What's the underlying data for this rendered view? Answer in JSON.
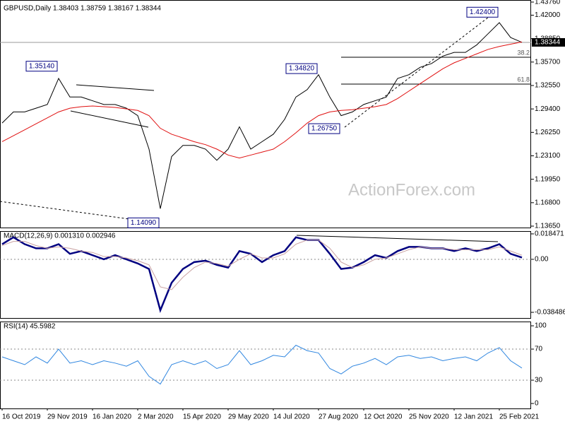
{
  "chart_data": [
    {
      "type": "line",
      "title": "GBPUSD,Daily  1.38403 1.38759 1.38167 1.38344",
      "watermark": "ActionForex.com",
      "series": [
        {
          "name": "GBPUSD",
          "color": "#000000",
          "values": [
            1.275,
            1.29,
            1.29,
            1.295,
            1.3,
            1.335,
            1.31,
            1.31,
            1.305,
            1.3,
            1.3,
            1.295,
            1.285,
            1.24,
            1.16,
            1.23,
            1.245,
            1.245,
            1.24,
            1.225,
            1.24,
            1.27,
            1.24,
            1.25,
            1.26,
            1.28,
            1.31,
            1.32,
            1.34,
            1.31,
            1.285,
            1.29,
            1.3,
            1.305,
            1.31,
            1.335,
            1.34,
            1.35,
            1.355,
            1.365,
            1.37,
            1.37,
            1.38,
            1.395,
            1.41,
            1.39,
            1.38344
          ]
        },
        {
          "name": "MA",
          "color": "#e01010",
          "values": [
            1.25,
            1.258,
            1.266,
            1.274,
            1.282,
            1.29,
            1.295,
            1.297,
            1.298,
            1.297,
            1.296,
            1.294,
            1.292,
            1.285,
            1.268,
            1.26,
            1.255,
            1.25,
            1.246,
            1.24,
            1.232,
            1.228,
            1.232,
            1.236,
            1.24,
            1.25,
            1.262,
            1.275,
            1.285,
            1.29,
            1.292,
            1.293,
            1.295,
            1.297,
            1.3,
            1.308,
            1.318,
            1.328,
            1.338,
            1.348,
            1.356,
            1.362,
            1.368,
            1.374,
            1.378,
            1.381,
            1.384
          ]
        }
      ],
      "ylim": [
        1.1346,
        1.4404
      ],
      "yticks": [
        {
          "value": 1.4376,
          "label": "1.43760"
        },
        {
          "value": 1.42,
          "label": "1.42000"
        },
        {
          "value": 1.3885,
          "label": "1.38850"
        },
        {
          "value": 1.357,
          "label": "1.35700"
        },
        {
          "value": 1.3255,
          "label": "1.32550"
        },
        {
          "value": 1.294,
          "label": "1.29400"
        },
        {
          "value": 1.2625,
          "label": "1.26250"
        },
        {
          "value": 1.231,
          "label": "1.23100"
        },
        {
          "value": 1.1995,
          "label": "1.19950"
        },
        {
          "value": 1.168,
          "label": "1.16800"
        },
        {
          "value": 1.1365,
          "label": "1.13650"
        }
      ],
      "last_price": {
        "value": 1.38344,
        "label": "1.38344"
      },
      "annotations": [
        {
          "index": 5,
          "value": 1.3514,
          "label": "1.35140"
        },
        {
          "index": 14,
          "value": 1.1409,
          "label": "1.14090"
        },
        {
          "index": 28,
          "value": 1.3482,
          "label": "1.34820"
        },
        {
          "index": 30,
          "value": 1.2675,
          "label": "1.26750"
        },
        {
          "index": 44,
          "value": 1.424,
          "label": "1.42400"
        }
      ],
      "fib_levels": [
        {
          "text": "38.2",
          "price": 1.3635,
          "start_index": 30
        },
        {
          "text": "61.8",
          "price": 1.3274,
          "start_index": 30
        }
      ]
    },
    {
      "type": "line",
      "title": "MACD(12,26,9) 0.001310 0.002946",
      "series": [
        {
          "name": "MACD",
          "color": "#000080",
          "width": 2.5,
          "values": [
            0.011,
            0.016,
            0.011,
            0.008,
            0.008,
            0.011,
            0.004,
            0.006,
            0.003,
            0.0,
            0.003,
            0.0,
            -0.003,
            -0.007,
            -0.037,
            -0.017,
            -0.007,
            -0.002,
            -0.001,
            -0.004,
            -0.006,
            0.006,
            0.004,
            -0.002,
            0.003,
            0.006,
            0.016,
            0.014,
            0.014,
            0.004,
            -0.007,
            -0.006,
            -0.002,
            0.003,
            0.001,
            0.006,
            0.009,
            0.009,
            0.008,
            0.008,
            0.006,
            0.008,
            0.006,
            0.008,
            0.011,
            0.004,
            0.00131
          ]
        },
        {
          "name": "Signal",
          "color": "#c8a0a0",
          "width": 1,
          "values": [
            0.01,
            0.013,
            0.013,
            0.01,
            0.008,
            0.009,
            0.008,
            0.006,
            0.005,
            0.002,
            0.002,
            0.001,
            -0.001,
            -0.004,
            -0.02,
            -0.022,
            -0.013,
            -0.006,
            -0.002,
            -0.003,
            -0.005,
            0.0,
            0.004,
            0.001,
            0.001,
            0.004,
            0.011,
            0.014,
            0.014,
            0.008,
            -0.002,
            -0.006,
            -0.004,
            0.0,
            0.001,
            0.004,
            0.007,
            0.009,
            0.008,
            0.008,
            0.007,
            0.007,
            0.007,
            0.007,
            0.009,
            0.006,
            0.002946
          ]
        }
      ],
      "ylim": [
        -0.0426,
        0.0205
      ],
      "yticks": [
        0.018471,
        {
          "value": 0,
          "label": "0.00"
        },
        -0.038486
      ],
      "levels": [
        0
      ]
    },
    {
      "type": "line",
      "title": "RSI(14) 45.5982",
      "series": [
        {
          "name": "RSI",
          "color": "#2f86e0",
          "width": 1,
          "values": [
            60,
            55,
            50,
            60,
            52,
            70,
            52,
            55,
            50,
            55,
            52,
            48,
            55,
            35,
            25,
            50,
            55,
            50,
            55,
            45,
            50,
            68,
            50,
            55,
            62,
            60,
            75,
            68,
            65,
            45,
            38,
            48,
            52,
            58,
            50,
            60,
            62,
            58,
            60,
            55,
            58,
            60,
            55,
            65,
            72,
            55,
            45.5982
          ]
        }
      ],
      "ylim": [
        -6.4,
        105.5
      ],
      "yticks": [
        100,
        70,
        30,
        0
      ],
      "levels": [
        70,
        30
      ],
      "categories": [
        "16 Oct 2019",
        null,
        null,
        null,
        "29 Nov 2019",
        null,
        null,
        null,
        "16 Jan 2020",
        null,
        null,
        null,
        "2 Mar 2020",
        null,
        null,
        null,
        "15 Apr 2020",
        null,
        null,
        null,
        "29 May 2020",
        null,
        null,
        null,
        "14 Jul 2020",
        null,
        null,
        null,
        "27 Aug 2020",
        null,
        null,
        null,
        "12 Oct 2020",
        null,
        null,
        null,
        "25 Nov 2020",
        null,
        null,
        null,
        "12 Jan 2021",
        null,
        null,
        null,
        "25 Feb 2021",
        null,
        null
      ]
    }
  ]
}
